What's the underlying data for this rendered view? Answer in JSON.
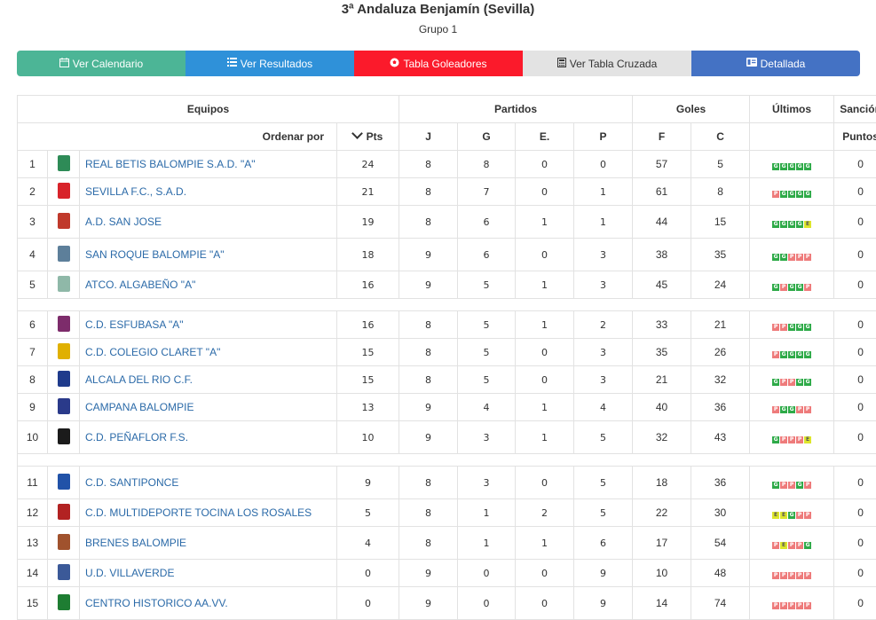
{
  "header": {
    "title": "3ª Andaluza Benjamín (Sevilla)",
    "subtitle": "Grupo 1"
  },
  "buttons": [
    {
      "label": "Ver Calendario",
      "icon": "calendar-icon",
      "color": "#4cb596"
    },
    {
      "label": "Ver Resultados",
      "icon": "list-icon",
      "color": "#2f91d9"
    },
    {
      "label": "Tabla Goleadores",
      "icon": "soccer-ball-icon",
      "color": "#fb1a2b"
    },
    {
      "label": "Ver Tabla Cruzada",
      "icon": "calculator-icon",
      "color": "#e3e3e3"
    },
    {
      "label": "Detallada",
      "icon": "id-card-icon",
      "color": "#4472c4"
    }
  ],
  "table": {
    "groups": {
      "equipos": "Equipos",
      "partidos": "Partidos",
      "goles": "Goles",
      "ultimos": "Últimos",
      "sancion": "Sanción"
    },
    "columns": {
      "ordenar": "Ordenar por",
      "pts": "Pts",
      "j": "J",
      "g": "G",
      "e": "E.",
      "p": "P",
      "f": "F",
      "c": "C",
      "puntos": "Puntos"
    },
    "rows": [
      {
        "pos": "1",
        "crest": "#2e8b57",
        "name": "REAL BETIS BALOMPIE S.A.D. \"A\"",
        "pts": "24",
        "j": "8",
        "g": "8",
        "e": "0",
        "p": "0",
        "f": "57",
        "c": "5",
        "last": [
          "G",
          "G",
          "G",
          "G",
          "G"
        ],
        "sancion": "0"
      },
      {
        "pos": "2",
        "crest": "#d8232a",
        "name": "SEVILLA F.C., S.A.D.",
        "pts": "21",
        "j": "8",
        "g": "7",
        "e": "0",
        "p": "1",
        "f": "61",
        "c": "8",
        "last": [
          "P",
          "G",
          "G",
          "G",
          "G"
        ],
        "sancion": "0"
      },
      {
        "pos": "3",
        "crest": "#c0392b",
        "name": "A.D. SAN JOSE",
        "pts": "19",
        "j": "8",
        "g": "6",
        "e": "1",
        "p": "1",
        "f": "44",
        "c": "15",
        "last": [
          "G",
          "G",
          "G",
          "G",
          "E"
        ],
        "sancion": "0"
      },
      {
        "pos": "4",
        "crest": "#5d7f9a",
        "name": "SAN ROQUE BALOMPIE \"A\"",
        "pts": "18",
        "j": "9",
        "g": "6",
        "e": "0",
        "p": "3",
        "f": "38",
        "c": "35",
        "last": [
          "G",
          "G",
          "P",
          "P",
          "P"
        ],
        "sancion": "0"
      },
      {
        "pos": "5",
        "crest": "#8fb8a8",
        "name": "ATCO. ALGABEÑO \"A\"",
        "pts": "16",
        "j": "9",
        "g": "5",
        "e": "1",
        "p": "3",
        "f": "45",
        "c": "24",
        "last": [
          "G",
          "P",
          "G",
          "G",
          "P"
        ],
        "sancion": "0"
      },
      {
        "pos": "6",
        "crest": "#7d2c6b",
        "name": "C.D. ESFUBASA \"A\"",
        "pts": "16",
        "j": "8",
        "g": "5",
        "e": "1",
        "p": "2",
        "f": "33",
        "c": "21",
        "last": [
          "P",
          "P",
          "G",
          "G",
          "G"
        ],
        "sancion": "0"
      },
      {
        "pos": "7",
        "crest": "#e0b000",
        "name": "C.D. COLEGIO CLARET \"A\"",
        "pts": "15",
        "j": "8",
        "g": "5",
        "e": "0",
        "p": "3",
        "f": "35",
        "c": "26",
        "last": [
          "P",
          "G",
          "G",
          "G",
          "G"
        ],
        "sancion": "0"
      },
      {
        "pos": "8",
        "crest": "#1f3b8c",
        "name": "ALCALA DEL RIO C.F.",
        "pts": "15",
        "j": "8",
        "g": "5",
        "e": "0",
        "p": "3",
        "f": "21",
        "c": "32",
        "last": [
          "G",
          "P",
          "P",
          "G",
          "G"
        ],
        "sancion": "0"
      },
      {
        "pos": "9",
        "crest": "#2a3a8a",
        "name": "CAMPANA BALOMPIE",
        "pts": "13",
        "j": "9",
        "g": "4",
        "e": "1",
        "p": "4",
        "f": "40",
        "c": "36",
        "last": [
          "P",
          "G",
          "G",
          "P",
          "P"
        ],
        "sancion": "0"
      },
      {
        "pos": "10",
        "crest": "#1b1b1b",
        "name": "C.D. PEÑAFLOR F.S.",
        "pts": "10",
        "j": "9",
        "g": "3",
        "e": "1",
        "p": "5",
        "f": "32",
        "c": "43",
        "last": [
          "G",
          "P",
          "P",
          "P",
          "E"
        ],
        "sancion": "0"
      },
      {
        "pos": "11",
        "crest": "#2152a8",
        "name": "C.D. SANTIPONCE",
        "pts": "9",
        "j": "8",
        "g": "3",
        "e": "0",
        "p": "5",
        "f": "18",
        "c": "36",
        "last": [
          "G",
          "P",
          "P",
          "G",
          "P"
        ],
        "sancion": "0"
      },
      {
        "pos": "12",
        "crest": "#b22222",
        "name": "C.D. MULTIDEPORTE TOCINA LOS ROSALES",
        "pts": "5",
        "j": "8",
        "g": "1",
        "e": "2",
        "p": "5",
        "f": "22",
        "c": "30",
        "last": [
          "E",
          "E",
          "G",
          "P",
          "P"
        ],
        "sancion": "0"
      },
      {
        "pos": "13",
        "crest": "#a0522d",
        "name": "BRENES BALOMPIE",
        "pts": "4",
        "j": "8",
        "g": "1",
        "e": "1",
        "p": "6",
        "f": "17",
        "c": "54",
        "last": [
          "P",
          "E",
          "P",
          "P",
          "G"
        ],
        "sancion": "0"
      },
      {
        "pos": "14",
        "crest": "#3b5998",
        "name": "U.D. VILLAVERDE",
        "pts": "0",
        "j": "9",
        "g": "0",
        "e": "0",
        "p": "9",
        "f": "10",
        "c": "48",
        "last": [
          "P",
          "P",
          "P",
          "P",
          "P"
        ],
        "sancion": "0"
      },
      {
        "pos": "15",
        "crest": "#1e7d32",
        "name": "CENTRO HISTORICO AA.VV.",
        "pts": "0",
        "j": "9",
        "g": "0",
        "e": "0",
        "p": "9",
        "f": "14",
        "c": "74",
        "last": [
          "P",
          "P",
          "P",
          "P",
          "P"
        ],
        "sancion": "0"
      }
    ]
  }
}
